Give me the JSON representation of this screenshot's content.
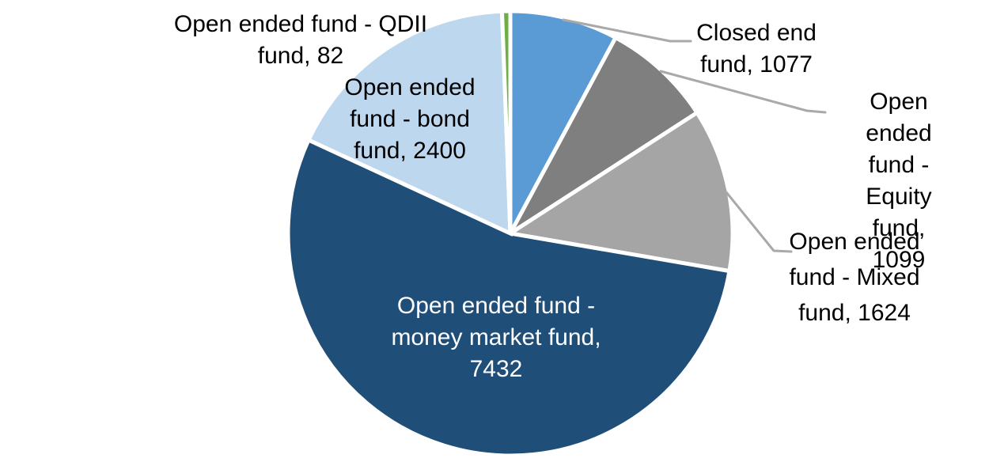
{
  "chart_data": {
    "type": "pie",
    "title": "",
    "legend": "none",
    "background": "#FFFFFF",
    "start_angle_deg": 0,
    "direction": "clockwise",
    "label_format": "category, value",
    "series": [
      {
        "key": "closed-end-fund",
        "name": "Closed end fund",
        "value": 1077,
        "color": "#5B9BD5",
        "label_placement": "outside-with-leader"
      },
      {
        "key": "open-ended-equity-fund",
        "name": "Open ended fund - Equity fund",
        "value": 1099,
        "color": "#7F7F7F",
        "label_placement": "outside-with-leader"
      },
      {
        "key": "open-ended-mixed-fund",
        "name": "Open ended fund - Mixed fund",
        "value": 1624,
        "color": "#A5A5A5",
        "label_placement": "outside-with-leader"
      },
      {
        "key": "open-ended-money-market-fund",
        "name": "Open ended fund - money market fund",
        "value": 7432,
        "color": "#1F4E79",
        "label_placement": "inside"
      },
      {
        "key": "open-ended-bond-fund",
        "name": "Open ended fund - bond fund",
        "value": 2400,
        "color": "#BDD7EE",
        "label_placement": "outside"
      },
      {
        "key": "open-ended-qdii-fund",
        "name": "Open ended fund - QDII fund",
        "value": 82,
        "color": "#70AD47",
        "label_placement": "outside"
      }
    ]
  },
  "labels": {
    "closed_end": "Closed end\nfund, 1077",
    "equity": "Open ended\nfund - Equity\nfund, 1099",
    "mixed": "Open ended\nfund - Mixed\nfund, 1624",
    "money_market": "Open ended fund -\nmoney market fund,\n7432",
    "bond": "Open ended\nfund - bond\nfund, 2400",
    "qdii": "Open ended fund - QDII\nfund, 82"
  },
  "colors": {
    "leader_line": "#A9A9A9",
    "slice_border": "#FFFFFF",
    "label_text": "#000000",
    "inside_label_text": "#FFFFFF"
  }
}
